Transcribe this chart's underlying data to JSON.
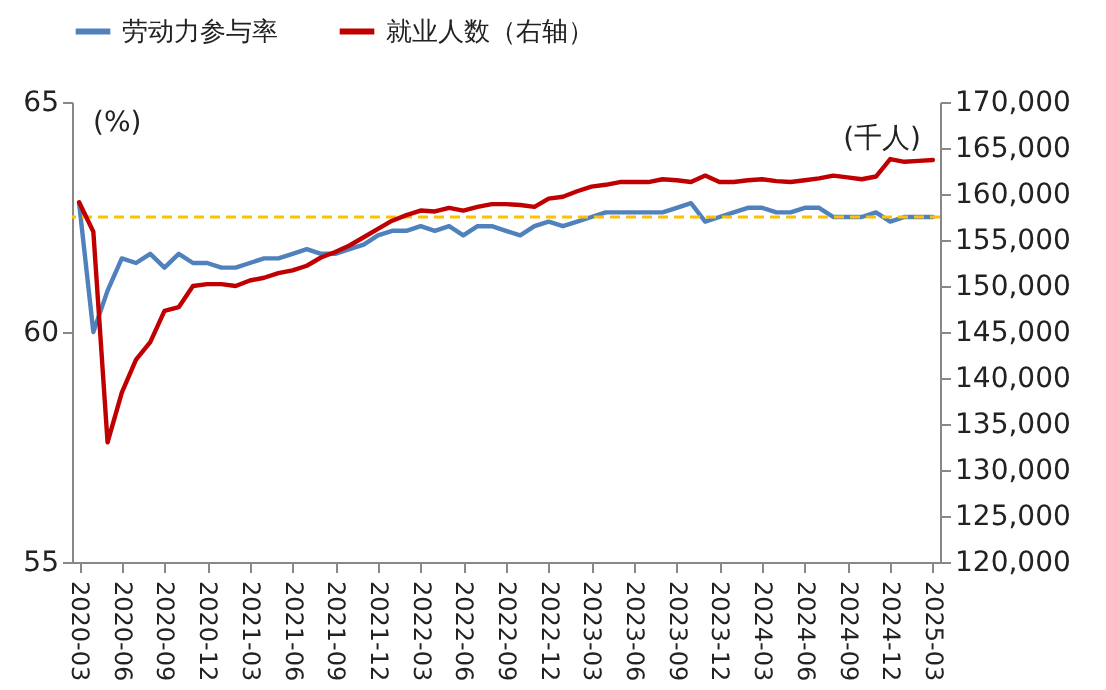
{
  "chart_data": {
    "type": "line",
    "categories": [
      "2020-03",
      null,
      null,
      "2020-06",
      null,
      null,
      "2020-09",
      null,
      null,
      "2020-12",
      null,
      null,
      "2021-03",
      null,
      null,
      "2021-06",
      null,
      null,
      "2021-09",
      null,
      null,
      "2021-12",
      null,
      null,
      "2022-03",
      null,
      null,
      "2022-06",
      null,
      null,
      "2022-09",
      null,
      null,
      "2022-12",
      null,
      null,
      "2023-03",
      null,
      null,
      "2023-06",
      null,
      null,
      "2023-09",
      null,
      null,
      "2023-12",
      null,
      null,
      "2024-03",
      null,
      null,
      "2024-06",
      null,
      null,
      "2024-09",
      null,
      null,
      "2024-12",
      null,
      null,
      "2025-03"
    ],
    "ylabel": "(%)",
    "y2label": "(千人)",
    "ylim": [
      55,
      65
    ],
    "yticks": [
      55,
      60,
      65
    ],
    "y2lim": [
      120000,
      170000
    ],
    "y2ticks": [
      {
        "value": 120000,
        "label": "120,000"
      },
      {
        "value": 125000,
        "label": "125,000"
      },
      {
        "value": 130000,
        "label": "130,000"
      },
      {
        "value": 135000,
        "label": "135,000"
      },
      {
        "value": 140000,
        "label": "140,000"
      },
      {
        "value": 145000,
        "label": "145,000"
      },
      {
        "value": 150000,
        "label": "150,000"
      },
      {
        "value": 155000,
        "label": "155,000"
      },
      {
        "value": 160000,
        "label": "160,000"
      },
      {
        "value": 165000,
        "label": "165,000"
      },
      {
        "value": 170000,
        "label": "170,000"
      }
    ],
    "series": [
      {
        "name": "劳动力参与率",
        "color": "#4f81bd",
        "values": [
          62.8,
          60.0,
          60.9,
          61.6,
          61.5,
          61.7,
          61.4,
          61.7,
          61.5,
          61.5,
          61.4,
          61.4,
          61.5,
          61.6,
          61.6,
          61.7,
          61.8,
          61.7,
          61.7,
          61.8,
          61.9,
          62.1,
          62.2,
          62.2,
          62.3,
          62.2,
          62.3,
          62.1,
          62.3,
          62.3,
          62.2,
          62.1,
          62.3,
          62.4,
          62.3,
          62.4,
          62.5,
          62.6,
          62.6,
          62.6,
          62.6,
          62.6,
          62.7,
          62.8,
          62.4,
          62.5,
          62.6,
          62.7,
          62.7,
          62.6,
          62.6,
          62.7,
          62.7,
          62.5,
          62.5,
          62.5,
          62.6,
          62.4,
          62.5,
          62.5,
          62.5
        ]
      },
      {
        "name": "就业人数（右轴）",
        "color": "#c00000",
        "axis": "y2",
        "values": [
          159100,
          155900,
          133000,
          138400,
          142000,
          143900,
          147300,
          147700,
          150000,
          150200,
          150200,
          150000,
          150600,
          150900,
          151400,
          151700,
          152200,
          153100,
          153700,
          154400,
          155300,
          156200,
          157100,
          157700,
          158200,
          158100,
          158500,
          158200,
          158600,
          158900,
          158900,
          158800,
          158600,
          159500,
          159700,
          160300,
          160800,
          161000,
          161300,
          161300,
          161300,
          161600,
          161500,
          161300,
          162000,
          161300,
          161300,
          161500,
          161600,
          161400,
          161300,
          161500,
          161700,
          162000,
          161800,
          161600,
          161900,
          163800,
          163500,
          163600,
          163700
        ]
      }
    ],
    "ref_lines": [
      {
        "axis": "y",
        "value": 62.5,
        "color": "#ffc000",
        "line_style": "dashed"
      }
    ],
    "legend": "top",
    "grid": false
  }
}
